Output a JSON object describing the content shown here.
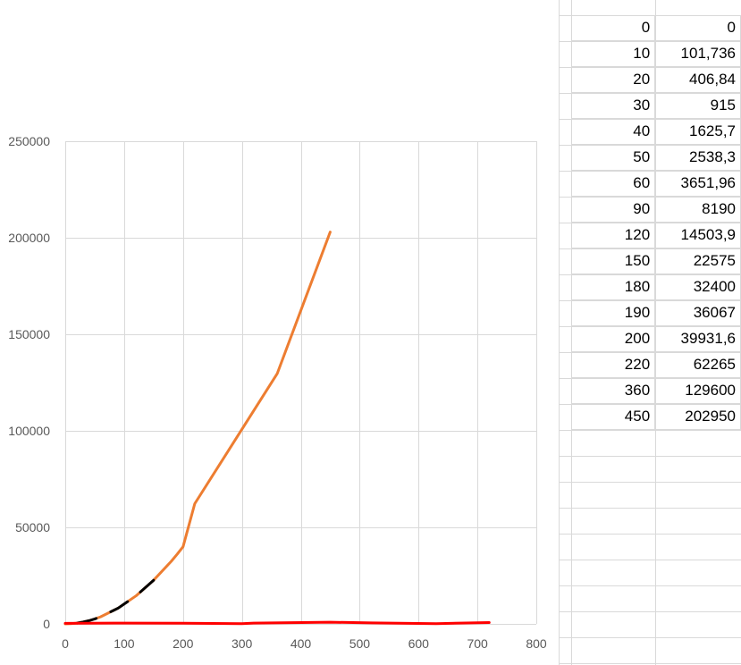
{
  "chart_data": {
    "type": "line",
    "xlim": [
      0,
      800
    ],
    "ylim": [
      0,
      250000
    ],
    "x_ticks": [
      "0",
      "100",
      "200",
      "300",
      "400",
      "500",
      "600",
      "700",
      "800"
    ],
    "y_ticks": [
      "0",
      "50000",
      "100000",
      "150000",
      "200000",
      "250000"
    ],
    "grid": true,
    "legend": "none",
    "series": [
      {
        "color": "#ED7D31",
        "x": [
          0,
          10,
          20,
          30,
          40,
          50,
          60,
          90,
          120,
          150,
          180,
          190,
          200,
          220,
          360,
          450
        ],
        "y": [
          0,
          101.736,
          406.84,
          915,
          1625.7,
          2538.3,
          3651.96,
          8190,
          14503.9,
          22575,
          32400,
          36067,
          39931.6,
          62265,
          129600,
          202950
        ]
      },
      {
        "color": "#000000",
        "x": [
          20,
          30,
          40,
          50,
          60,
          90,
          120,
          150
        ],
        "y": [
          406.84,
          915,
          1625.7,
          2538.3,
          3651.96,
          8190,
          14503.9,
          22575
        ]
      },
      {
        "color": "#FF0000",
        "x": [
          0,
          100,
          200,
          300,
          320,
          450,
          520,
          630,
          720
        ],
        "y": [
          300,
          400,
          350,
          150,
          400,
          900,
          500,
          150,
          700
        ]
      }
    ]
  },
  "table": {
    "rows": [
      [
        "0",
        "0"
      ],
      [
        "10",
        "101,736"
      ],
      [
        "20",
        "406,84"
      ],
      [
        "30",
        "915"
      ],
      [
        "40",
        "1625,7"
      ],
      [
        "50",
        "2538,3"
      ],
      [
        "60",
        "3651,96"
      ],
      [
        "90",
        "8190"
      ],
      [
        "120",
        "14503,9"
      ],
      [
        "150",
        "22575"
      ],
      [
        "180",
        "32400"
      ],
      [
        "190",
        "36067"
      ],
      [
        "200",
        "39931,6"
      ],
      [
        "220",
        "62265"
      ],
      [
        "360",
        "129600"
      ],
      [
        "450",
        "202950"
      ]
    ]
  }
}
